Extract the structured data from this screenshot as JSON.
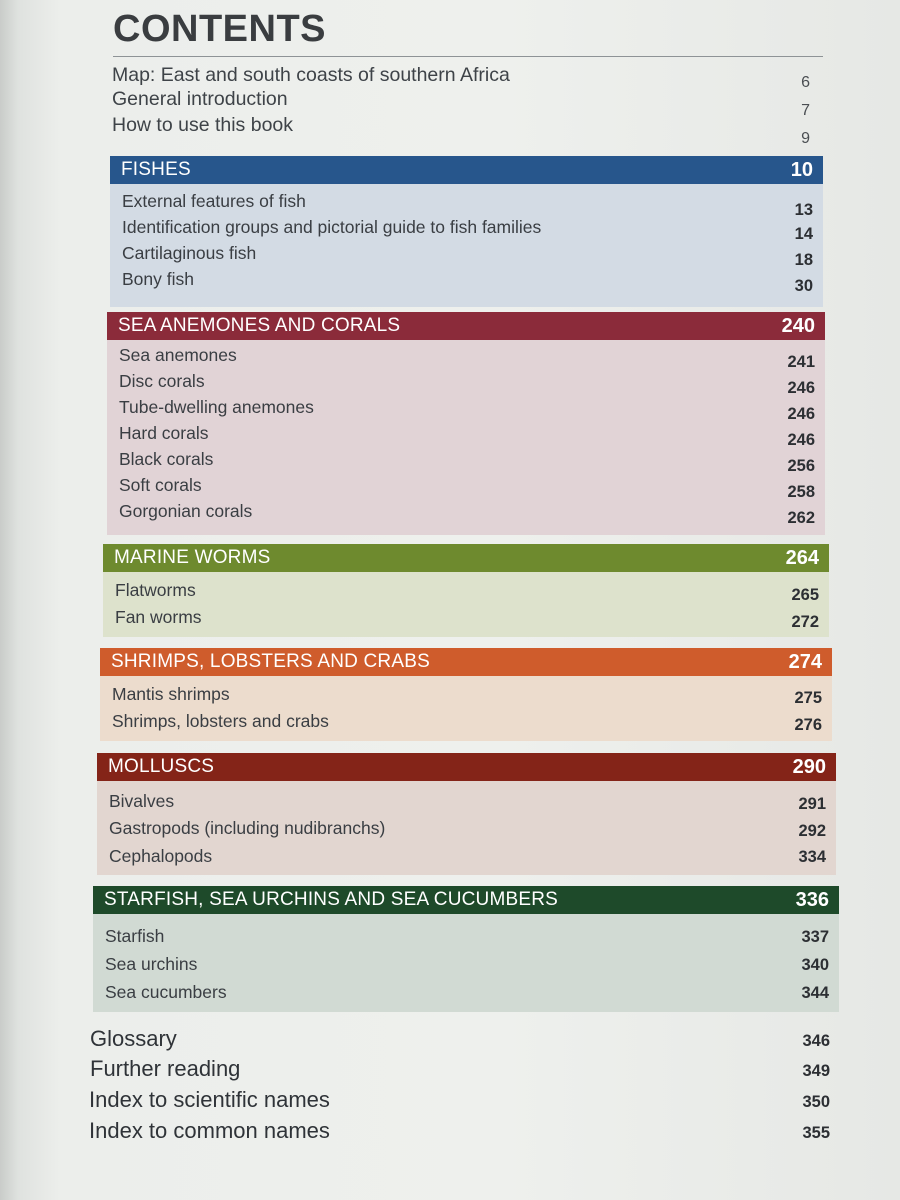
{
  "title": "CONTENTS",
  "intro": [
    {
      "label": "Map: East and south coasts of southern Africa",
      "page": "6"
    },
    {
      "label": "General introduction",
      "page": "7"
    },
    {
      "label": "How to use this book",
      "page": "9"
    }
  ],
  "sections": [
    {
      "title": "FISHES",
      "page": "10",
      "bar_color": "#27568c",
      "body_color": "#d3dbe4",
      "items": [
        {
          "label": "External features of fish",
          "page": "13"
        },
        {
          "label": "Identification groups and pictorial guide to fish families",
          "page": "14"
        },
        {
          "label": "Cartilaginous fish",
          "page": "18"
        },
        {
          "label": "Bony fish",
          "page": "30"
        }
      ]
    },
    {
      "title": "SEA ANEMONES AND CORALS",
      "page": "240",
      "bar_color": "#8b2b3a",
      "body_color": "#e1d3d6",
      "items": [
        {
          "label": "Sea anemones",
          "page": "241"
        },
        {
          "label": "Disc corals",
          "page": "246"
        },
        {
          "label": "Tube-dwelling anemones",
          "page": "246"
        },
        {
          "label": "Hard corals",
          "page": "246"
        },
        {
          "label": "Black corals",
          "page": "256"
        },
        {
          "label": "Soft corals",
          "page": "258"
        },
        {
          "label": "Gorgonian corals",
          "page": "262"
        }
      ]
    },
    {
      "title": "MARINE WORMS",
      "page": "264",
      "bar_color": "#6e8a2e",
      "body_color": "#dde2cc",
      "items": [
        {
          "label": "Flatworms",
          "page": "265"
        },
        {
          "label": "Fan worms",
          "page": "272"
        }
      ]
    },
    {
      "title": "SHRIMPS, LOBSTERS AND CRABS",
      "page": "274",
      "bar_color": "#cf5c2c",
      "body_color": "#ecdccd",
      "items": [
        {
          "label": "Mantis shrimps",
          "page": "275"
        },
        {
          "label": "Shrimps, lobsters and crabs",
          "page": "276"
        }
      ]
    },
    {
      "title": "MOLLUSCS",
      "page": "290",
      "bar_color": "#842418",
      "body_color": "#e2d6d0",
      "items": [
        {
          "label": "Bivalves",
          "page": "291"
        },
        {
          "label": "Gastropods (including nudibranchs)",
          "page": "292"
        },
        {
          "label": "Cephalopods",
          "page": "334"
        }
      ]
    },
    {
      "title": "STARFISH, SEA URCHINS AND SEA CUCUMBERS",
      "page": "336",
      "bar_color": "#1e4a2a",
      "body_color": "#d1dad3",
      "items": [
        {
          "label": "Starfish",
          "page": "337"
        },
        {
          "label": "Sea urchins",
          "page": "340"
        },
        {
          "label": "Sea cucumbers",
          "page": "344"
        }
      ]
    }
  ],
  "outro": [
    {
      "label": "Glossary",
      "page": "346"
    },
    {
      "label": "Further reading",
      "page": "349"
    },
    {
      "label": "Index to scientific names",
      "page": "350"
    },
    {
      "label": "Index to common names",
      "page": "355"
    }
  ]
}
